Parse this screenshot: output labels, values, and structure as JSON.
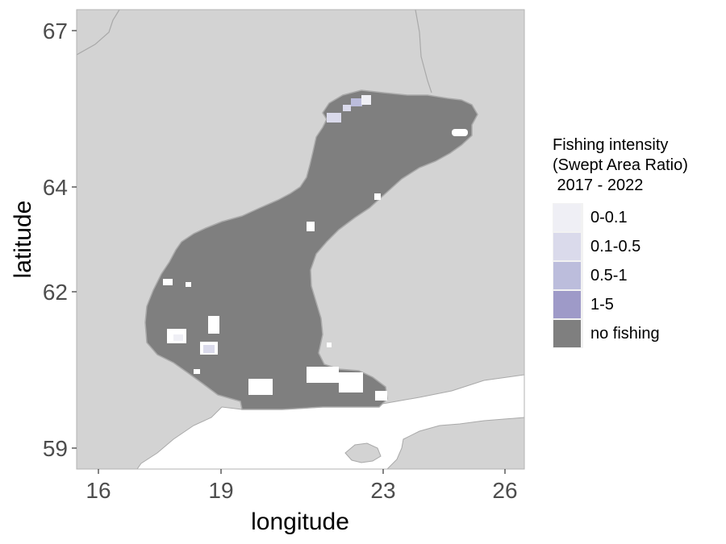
{
  "colors": {
    "land": "#d3d3d3",
    "coast": "#a9a9a9",
    "sea": "#ffffff",
    "no_fishing": "#7f7f7f",
    "panel_border": "#b3b3b3"
  },
  "chart_data": {
    "type": "heatmap",
    "map_type": "fishing intensity grid (Bothnian Sea / Gulf of Bothnia)",
    "xlabel": "longitude",
    "ylabel": "latitude",
    "x_ticks": [
      16,
      19,
      23,
      26
    ],
    "y_ticks": [
      59,
      62,
      64,
      67
    ],
    "xlim": [
      15.5,
      26.5
    ],
    "ylim": [
      58.6,
      67.3
    ],
    "legend": {
      "title_lines": [
        "Fishing intensity",
        "(Swept Area Ratio)",
        " 2017 - 2022"
      ],
      "placement": "right",
      "categories": [
        {
          "label": "0-0.1",
          "color": "#efeff5"
        },
        {
          "label": "0.1-0.5",
          "color": "#dadaeb"
        },
        {
          "label": "0.5-1",
          "color": "#bcbddc"
        },
        {
          "label": "1-5",
          "color": "#9e9ac8"
        },
        {
          "label": "no fishing",
          "color": "#7f7f7f"
        }
      ]
    },
    "fishing_patches": [
      {
        "category": "0.1-0.5",
        "lon": 22.1,
        "lat": 65.4
      },
      {
        "category": "0.5-1",
        "lon": 22.5,
        "lat": 65.55
      },
      {
        "category": "0-0.1",
        "lon": 22.9,
        "lat": 65.5
      },
      {
        "category": "0.1-0.5",
        "lon": 18.9,
        "lat": 60.9
      },
      {
        "category": "0-0.1",
        "lon": 18.0,
        "lat": 60.95
      }
    ]
  }
}
